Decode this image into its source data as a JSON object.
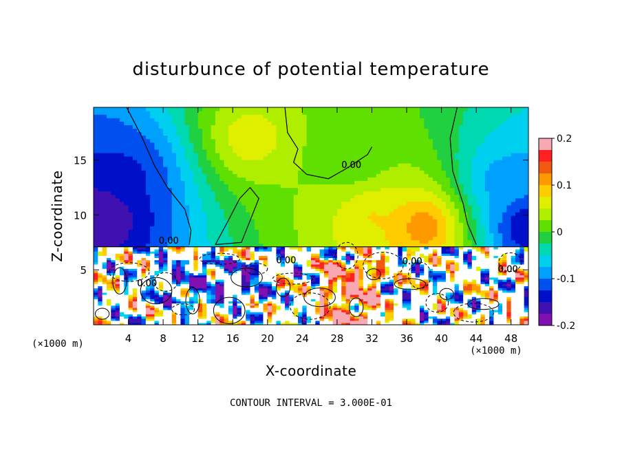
{
  "chart_data": {
    "type": "heatmap",
    "title": "disturbunce of potential temperature",
    "xlabel": "X-coordinate",
    "ylabel": "Z-coordinate",
    "x_unit_left": "(×1000 m)",
    "x_unit_right": "(×1000 m)",
    "footer": "CONTOUR INTERVAL = 3.000E-01",
    "xlim": [
      0,
      50
    ],
    "ylim": [
      0,
      19.8
    ],
    "x_ticks": [
      4,
      8,
      12,
      16,
      20,
      24,
      28,
      32,
      36,
      40,
      44,
      48
    ],
    "y_ticks": [
      5,
      10,
      15
    ],
    "colorbar": {
      "range": [
        -0.2,
        0.2
      ],
      "tick_values": [
        0.2,
        0.1,
        0,
        -0.1,
        -0.2
      ],
      "tick_labels": [
        "0.2",
        "0.1",
        "0",
        "-0.1",
        "-0.2"
      ],
      "colors": [
        "#f7a8b0",
        "#ff2020",
        "#f05a10",
        "#ff9900",
        "#ffcc00",
        "#e0ee00",
        "#b0ee00",
        "#60e000",
        "#20d040",
        "#00d8b0",
        "#00d0f0",
        "#00a0ff",
        "#0050f0",
        "#0010c8",
        "#4010b0",
        "#8010b0"
      ]
    },
    "contour_labels": [
      "0.00",
      "0.00",
      "0.00",
      "0.00",
      "0.00",
      "0.00"
    ],
    "fields": {
      "upper_layer_z_min": 7.1,
      "upper_layer_description_values": [
        {
          "x": 1,
          "z": 10,
          "value": -0.18
        },
        {
          "x": 4,
          "z": 14,
          "value": -0.13
        },
        {
          "x": 18,
          "z": 17,
          "value": 0.07
        },
        {
          "x": 30,
          "z": 15,
          "value": 0.0
        },
        {
          "x": 32,
          "z": 10,
          "value": 0.08
        },
        {
          "x": 38,
          "z": 9,
          "value": 0.13
        },
        {
          "x": 47,
          "z": 13,
          "value": -0.09
        },
        {
          "x": 50,
          "z": 9,
          "value": -0.16
        }
      ]
    }
  }
}
